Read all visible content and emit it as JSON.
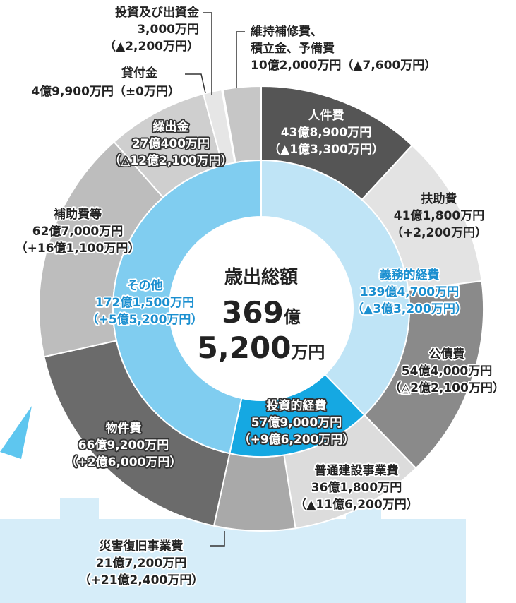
{
  "chart_data": {
    "type": "donut",
    "center_title": "歳出総額",
    "center_total": [
      "369",
      "億",
      "5,200",
      "万円"
    ],
    "rings": [
      {
        "items": [
          {
            "name": "人件費",
            "value": 438900,
            "value_label": "43億8,900万円",
            "change": "（▲1億3,300万円）",
            "color": "#555555"
          },
          {
            "name": "扶助費",
            "value": 411800,
            "value_label": "41億1,800万円",
            "change": "（+2,200万円）",
            "color": "#e3e3e3"
          },
          {
            "name": "公債費",
            "value": 544000,
            "value_label": "54億4,000万円",
            "change": "（△2億2,100万円）",
            "color": "#8a8a8a"
          },
          {
            "name": "普通建設事業費",
            "value": 361800,
            "value_label": "36億1,800万円",
            "change": "（▲11億6,200万円）",
            "color": "#dcdcdc"
          },
          {
            "name": "災害復旧事業費",
            "value": 217200,
            "value_label": "21億7,200万円",
            "change": "（+21億2,400万円）",
            "color": "#a9a9a9"
          },
          {
            "name": "物件費",
            "value": 669200,
            "value_label": "66億9,200万円",
            "change": "（+2億6,000万円）",
            "color": "#6b6b6b"
          },
          {
            "name": "補助費等",
            "value": 627000,
            "value_label": "62億7,000万円",
            "change": "（+16億1,100万円）",
            "color": "#bdbdbd"
          },
          {
            "name": "繰出金",
            "value": 270400,
            "value_label": "27億400万円",
            "change": "（△12億2,100万円）",
            "color": "#cfcfcf"
          },
          {
            "name": "貸付金",
            "value": 49900,
            "value_label": "4億9,900万円",
            "change": "（±0万円）",
            "color": "#e6e6e6"
          },
          {
            "name": "投資及び出資金",
            "value": 3000,
            "value_label": "3,000万円",
            "change": "（▲2,200万円）",
            "color": "#999999"
          },
          {
            "name": "維持補修費、\n積立金、予備費",
            "value": 102000,
            "value_label": "10億2,000万円",
            "change": "（▲7,600万円）",
            "color": "#c6c6c6"
          }
        ]
      },
      {
        "items": [
          {
            "name": "義務的経費",
            "value": 1394700,
            "value_label": "139億4,700万円",
            "change": "（▲3億3,200万円）",
            "color": "#bfe4f6"
          },
          {
            "name": "投資的経費",
            "value": 579000,
            "value_label": "57億9,000万円",
            "change": "（+9億6,200万円）",
            "color": "#15a8e2"
          },
          {
            "name": "その他",
            "value": 1721500,
            "value_label": "172億1,500万円",
            "change": "（+5億5,200万円）",
            "color": "#80cdf0"
          }
        ]
      }
    ]
  }
}
